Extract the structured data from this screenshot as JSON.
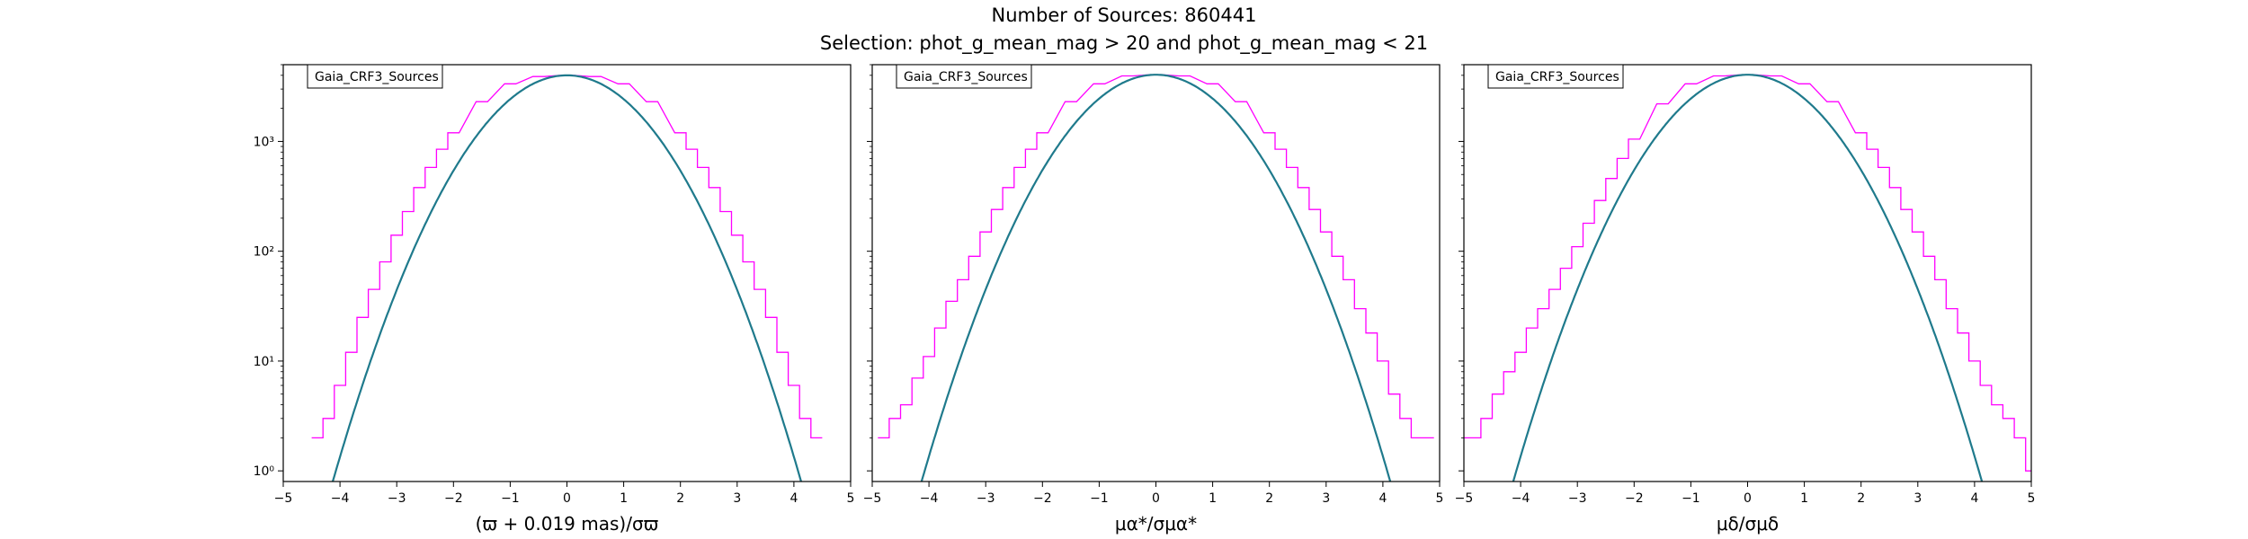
{
  "figure": {
    "title_line1": "Number of Sources: 860441",
    "title_line2": "Selection: phot_g_mean_mag > 20 and phot_g_mean_mag < 21"
  },
  "colors": {
    "histogram": "#ff00ff",
    "model": "#1f7a8c"
  },
  "chart_data": [
    {
      "type": "line",
      "title": "",
      "legend": "Gaia_CRF3_Sources",
      "legend_placement": "top-left",
      "xlabel": "(ϖ + 0.019 mas)/σϖ",
      "xlim": [
        -5,
        5
      ],
      "ylim": [
        0.8,
        5000
      ],
      "yscale": "log",
      "x_ticks": [
        -5,
        -4,
        -3,
        -2,
        -1,
        0,
        1,
        2,
        3,
        4,
        5
      ],
      "x_tick_labels": [
        "−5",
        "−4",
        "−3",
        "−2",
        "−1",
        "0",
        "1",
        "2",
        "3",
        "4",
        "5"
      ],
      "y_ticks": [
        1,
        10,
        100,
        1000
      ],
      "y_tick_labels": [
        "10⁰",
        "10¹",
        "10²",
        "10³"
      ],
      "grid": false,
      "series": [
        {
          "name": "",
          "kind": "histogram",
          "x": [
            -4.4,
            -4.2,
            -4.0,
            -3.8,
            -3.6,
            -3.4,
            -3.2,
            -3.0,
            -2.8,
            -2.6,
            -2.4,
            -2.2,
            -2.0,
            -1.5,
            -1.0,
            -0.5,
            0.0,
            0.5,
            1.0,
            1.5,
            2.0,
            2.2,
            2.4,
            2.6,
            2.8,
            3.0,
            3.2,
            3.4,
            3.6,
            3.8,
            4.0,
            4.2,
            4.4
          ],
          "y": [
            2,
            3,
            6,
            12,
            25,
            45,
            80,
            140,
            230,
            380,
            580,
            850,
            1200,
            2300,
            3350,
            3900,
            4000,
            3900,
            3350,
            2300,
            1200,
            850,
            580,
            380,
            230,
            140,
            80,
            45,
            25,
            12,
            6,
            3,
            2
          ]
        },
        {
          "name": "",
          "kind": "gaussian-model",
          "amplitude": 4000,
          "mean": 0.0,
          "sigma": 1.0,
          "x_range": [
            -4.3,
            4.4
          ]
        }
      ]
    },
    {
      "type": "line",
      "title": "",
      "legend": "Gaia_CRF3_Sources",
      "legend_placement": "top-left",
      "xlabel": "μα*/σμα*",
      "xlim": [
        -5,
        5
      ],
      "ylim": [
        0.8,
        5000
      ],
      "yscale": "log",
      "x_ticks": [
        -5,
        -4,
        -3,
        -2,
        -1,
        0,
        1,
        2,
        3,
        4,
        5
      ],
      "x_tick_labels": [
        "−5",
        "−4",
        "−3",
        "−2",
        "−1",
        "0",
        "1",
        "2",
        "3",
        "4",
        "5"
      ],
      "y_ticks": [
        1,
        10,
        100,
        1000
      ],
      "y_tick_labels": [
        "",
        "",
        "",
        ""
      ],
      "grid": false,
      "series": [
        {
          "name": "",
          "kind": "histogram",
          "x": [
            -4.8,
            -4.6,
            -4.4,
            -4.2,
            -4.0,
            -3.8,
            -3.6,
            -3.4,
            -3.2,
            -3.0,
            -2.8,
            -2.6,
            -2.4,
            -2.2,
            -2.0,
            -1.5,
            -1.0,
            -0.5,
            0.0,
            0.5,
            1.0,
            1.5,
            2.0,
            2.2,
            2.4,
            2.6,
            2.8,
            3.0,
            3.2,
            3.4,
            3.6,
            3.8,
            4.0,
            4.2,
            4.4,
            4.6,
            4.8
          ],
          "y": [
            2,
            3,
            4,
            7,
            11,
            20,
            35,
            55,
            90,
            150,
            240,
            380,
            580,
            850,
            1200,
            2300,
            3350,
            3950,
            4050,
            3950,
            3350,
            2300,
            1200,
            850,
            580,
            380,
            240,
            150,
            90,
            55,
            30,
            18,
            10,
            5,
            3,
            2,
            2
          ]
        },
        {
          "name": "",
          "kind": "gaussian-model",
          "amplitude": 4050,
          "mean": 0.0,
          "sigma": 1.0,
          "x_range": [
            -4.35,
            4.4
          ]
        }
      ]
    },
    {
      "type": "line",
      "title": "",
      "legend": "Gaia_CRF3_Sources",
      "legend_placement": "top-left",
      "xlabel": "μδ/σμδ",
      "xlim": [
        -5,
        5
      ],
      "ylim": [
        0.8,
        5000
      ],
      "yscale": "log",
      "x_ticks": [
        -5,
        -4,
        -3,
        -2,
        -1,
        0,
        1,
        2,
        3,
        4,
        5
      ],
      "x_tick_labels": [
        "−5",
        "−4",
        "−3",
        "−2",
        "−1",
        "0",
        "1",
        "2",
        "3",
        "4",
        "5"
      ],
      "y_ticks": [
        1,
        10,
        100,
        1000
      ],
      "y_tick_labels": [
        "",
        "",
        "",
        ""
      ],
      "grid": false,
      "series": [
        {
          "name": "",
          "kind": "histogram",
          "x": [
            -5.0,
            -4.8,
            -4.6,
            -4.4,
            -4.2,
            -4.0,
            -3.8,
            -3.6,
            -3.4,
            -3.2,
            -3.0,
            -2.8,
            -2.6,
            -2.4,
            -2.2,
            -2.0,
            -1.5,
            -1.0,
            -0.5,
            0.0,
            0.5,
            1.0,
            1.5,
            2.0,
            2.2,
            2.4,
            2.6,
            2.8,
            3.0,
            3.2,
            3.4,
            3.6,
            3.8,
            4.0,
            4.2,
            4.4,
            4.6,
            4.8,
            5.0
          ],
          "y": [
            2,
            2,
            3,
            5,
            8,
            12,
            20,
            30,
            45,
            70,
            110,
            180,
            290,
            460,
            700,
            1050,
            2200,
            3350,
            3950,
            4050,
            3950,
            3350,
            2300,
            1200,
            850,
            580,
            380,
            240,
            150,
            90,
            55,
            30,
            18,
            10,
            6,
            4,
            3,
            2,
            1
          ]
        },
        {
          "name": "",
          "kind": "gaussian-model",
          "amplitude": 4050,
          "mean": 0.0,
          "sigma": 1.0,
          "x_range": [
            -4.4,
            4.4
          ]
        }
      ]
    }
  ]
}
